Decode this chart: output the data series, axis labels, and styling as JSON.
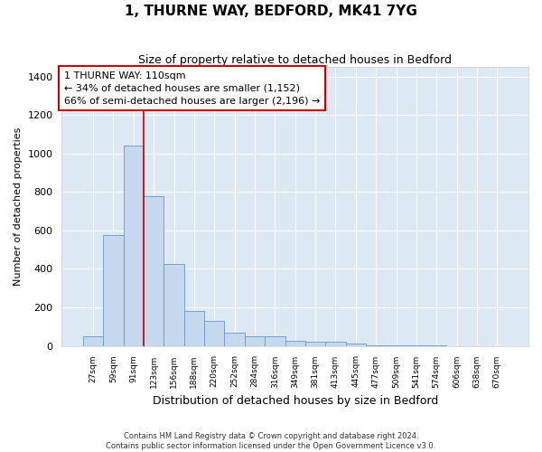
{
  "title": "1, THURNE WAY, BEDFORD, MK41 7YG",
  "subtitle": "Size of property relative to detached houses in Bedford",
  "xlabel": "Distribution of detached houses by size in Bedford",
  "ylabel": "Number of detached properties",
  "bar_color": "#c5d8ed",
  "bar_edge_color": "#6699cc",
  "background_color": "#dce9f5",
  "grid_color": "#ffffff",
  "fig_bg_color": "#ffffff",
  "categories": [
    "27sqm",
    "59sqm",
    "91sqm",
    "123sqm",
    "156sqm",
    "188sqm",
    "220sqm",
    "252sqm",
    "284sqm",
    "316sqm",
    "349sqm",
    "381sqm",
    "413sqm",
    "445sqm",
    "477sqm",
    "509sqm",
    "541sqm",
    "574sqm",
    "606sqm",
    "638sqm",
    "670sqm"
  ],
  "values": [
    50,
    575,
    1040,
    780,
    425,
    180,
    130,
    70,
    50,
    50,
    25,
    20,
    20,
    10,
    5,
    2,
    1,
    1,
    0,
    0,
    0
  ],
  "ylim": [
    0,
    1450
  ],
  "yticks": [
    0,
    200,
    400,
    600,
    800,
    1000,
    1200,
    1400
  ],
  "red_line_x": 2.5,
  "annotation_text": "1 THURNE WAY: 110sqm\n← 34% of detached houses are smaller (1,152)\n66% of semi-detached houses are larger (2,196) →",
  "annotation_box_color": "#ffffff",
  "annotation_border_color": "#cc0000",
  "footer_line1": "Contains HM Land Registry data © Crown copyright and database right 2024.",
  "footer_line2": "Contains public sector information licensed under the Open Government Licence v3.0."
}
